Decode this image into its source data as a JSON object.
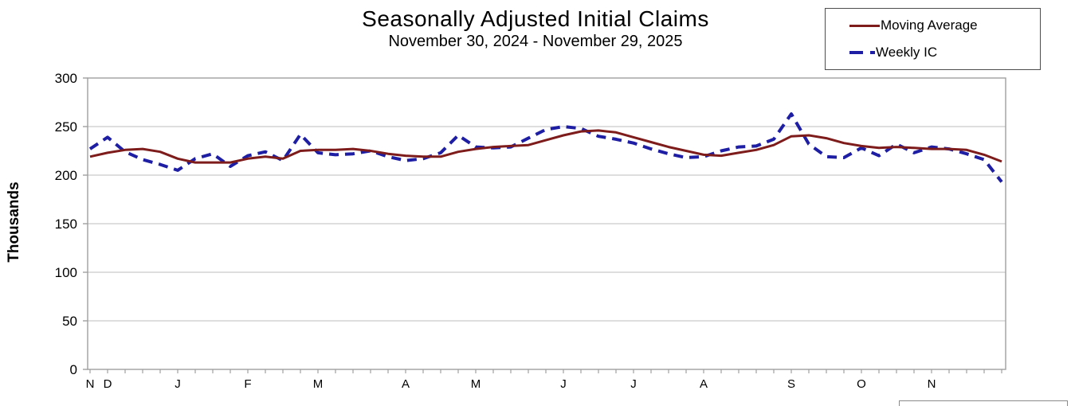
{
  "title": "Seasonally Adjusted Initial Claims",
  "subtitle": "November 30, 2024 - November 29, 2025",
  "legend": {
    "moving_average_label": "Moving Average",
    "weekly_ic_label": "Weekly IC"
  },
  "y_axis_title": "Thousands",
  "colors": {
    "moving_average": "#7e1b1b",
    "weekly_ic": "#1e1ea4",
    "gridline": "#c9c9c9",
    "axis": "#a0a0a0",
    "text": "#000000"
  },
  "chart_data": {
    "type": "line",
    "title": "Seasonally Adjusted Initial Claims",
    "subtitle": "November 30, 2024 - November 29, 2025",
    "xlabel": "",
    "ylabel": "Thousands",
    "ylim": [
      0,
      300
    ],
    "y_ticks": [
      0,
      50,
      100,
      150,
      200,
      250,
      300
    ],
    "grid": "horizontal",
    "legend_position": "top-right",
    "x_unit": "week (Saturday-ending, Nov 30 2024 - Nov 29 2025)",
    "x_month_labels": [
      {
        "label": "N",
        "week": 0
      },
      {
        "label": "D",
        "week": 1
      },
      {
        "label": "J",
        "week": 5
      },
      {
        "label": "F",
        "week": 9
      },
      {
        "label": "M",
        "week": 13
      },
      {
        "label": "A",
        "week": 18
      },
      {
        "label": "M",
        "week": 22
      },
      {
        "label": "J",
        "week": 27
      },
      {
        "label": "J",
        "week": 31
      },
      {
        "label": "A",
        "week": 35
      },
      {
        "label": "S",
        "week": 40
      },
      {
        "label": "O",
        "week": 44
      },
      {
        "label": "N",
        "week": 48
      }
    ],
    "series": [
      {
        "name": "Moving Average",
        "style": "solid",
        "color": "#7e1b1b",
        "values": [
          219,
          223,
          226,
          227,
          224,
          217,
          213,
          213,
          213,
          217,
          219,
          217,
          225,
          226,
          226,
          227,
          225,
          222,
          220,
          219,
          219,
          224,
          227,
          229,
          230,
          231,
          236,
          241,
          245,
          246,
          244,
          239,
          234,
          229,
          225,
          221,
          220,
          223,
          226,
          231,
          240,
          241,
          238,
          233,
          230,
          228,
          229,
          228,
          227,
          227,
          226,
          221,
          214
        ]
      },
      {
        "name": "Weekly IC",
        "style": "dashed",
        "color": "#1e1ea4",
        "values": [
          227,
          239,
          224,
          216,
          211,
          205,
          217,
          222,
          209,
          220,
          224,
          215,
          242,
          223,
          221,
          222,
          225,
          219,
          215,
          217,
          223,
          241,
          229,
          228,
          229,
          238,
          247,
          250,
          248,
          240,
          237,
          233,
          227,
          222,
          218,
          219,
          225,
          229,
          230,
          237,
          263,
          232,
          219,
          218,
          228,
          220,
          232,
          223,
          229,
          227,
          222,
          216,
          193
        ]
      }
    ]
  }
}
